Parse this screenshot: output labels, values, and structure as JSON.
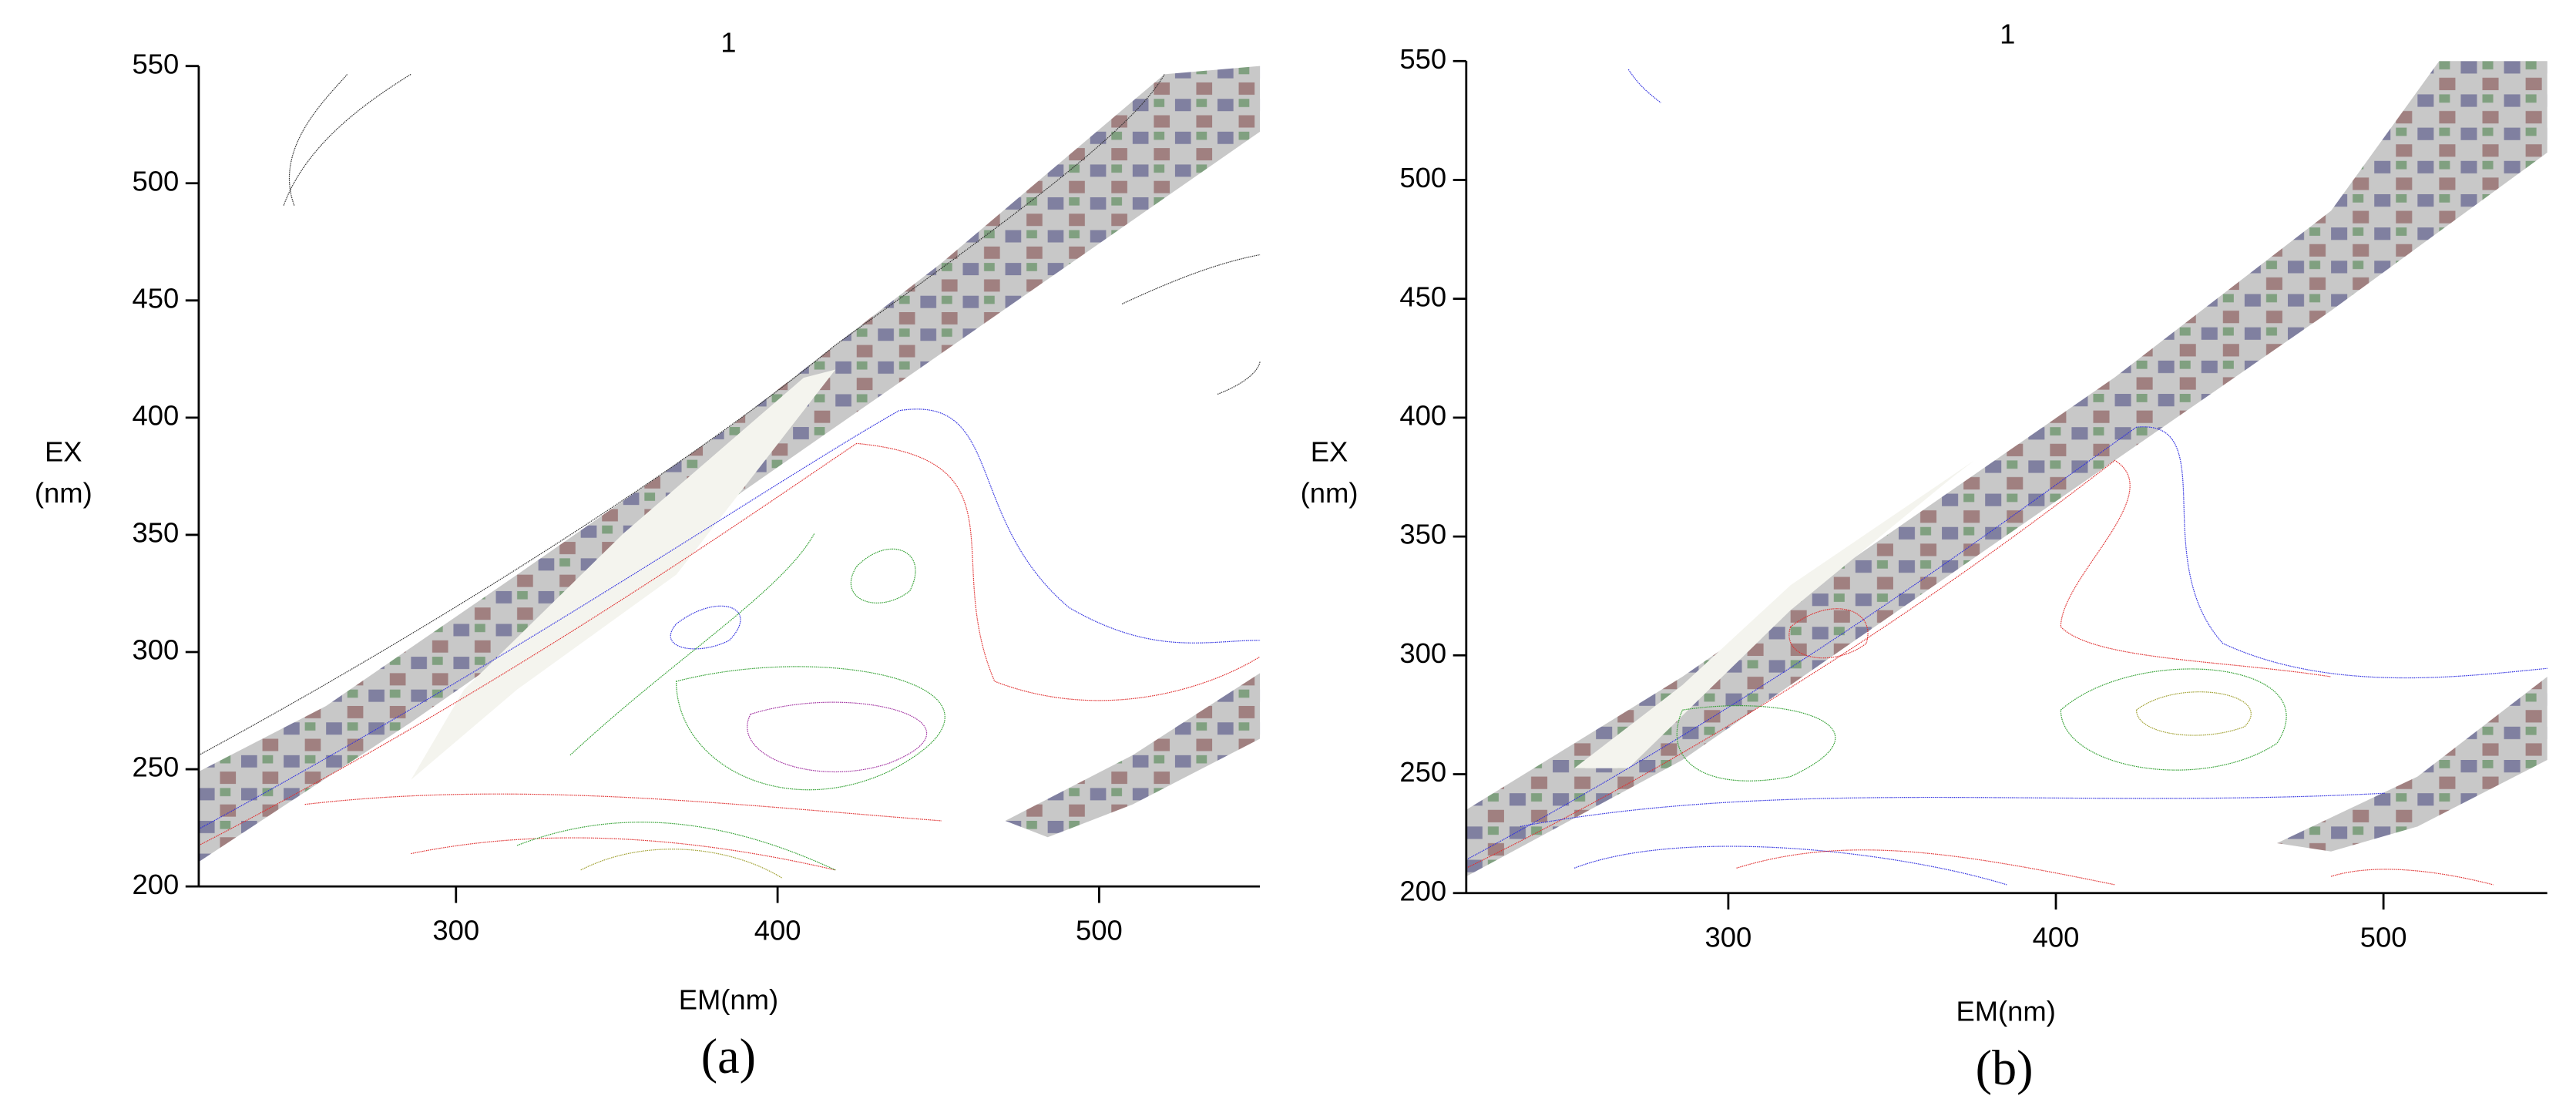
{
  "chart_data": [
    {
      "type": "contour",
      "title": "1",
      "xlabel": "EM(nm)",
      "ylabel": [
        "EX",
        "(nm)"
      ],
      "caption": "(a)",
      "xlim": [
        220,
        550
      ],
      "ylim": [
        200,
        550
      ],
      "xticks": [
        300,
        400,
        500
      ],
      "yticks": [
        200,
        250,
        300,
        350,
        400,
        450,
        500,
        550
      ]
    },
    {
      "type": "contour",
      "title": "1",
      "xlabel": "EM(nm)",
      "ylabel": [
        "EX",
        "(nm)"
      ],
      "caption": "(b)",
      "xlim": [
        220,
        550
      ],
      "ylim": [
        200,
        550
      ],
      "xticks": [
        300,
        400,
        500
      ],
      "yticks": [
        200,
        250,
        300,
        350,
        400,
        450,
        500,
        550
      ]
    }
  ]
}
